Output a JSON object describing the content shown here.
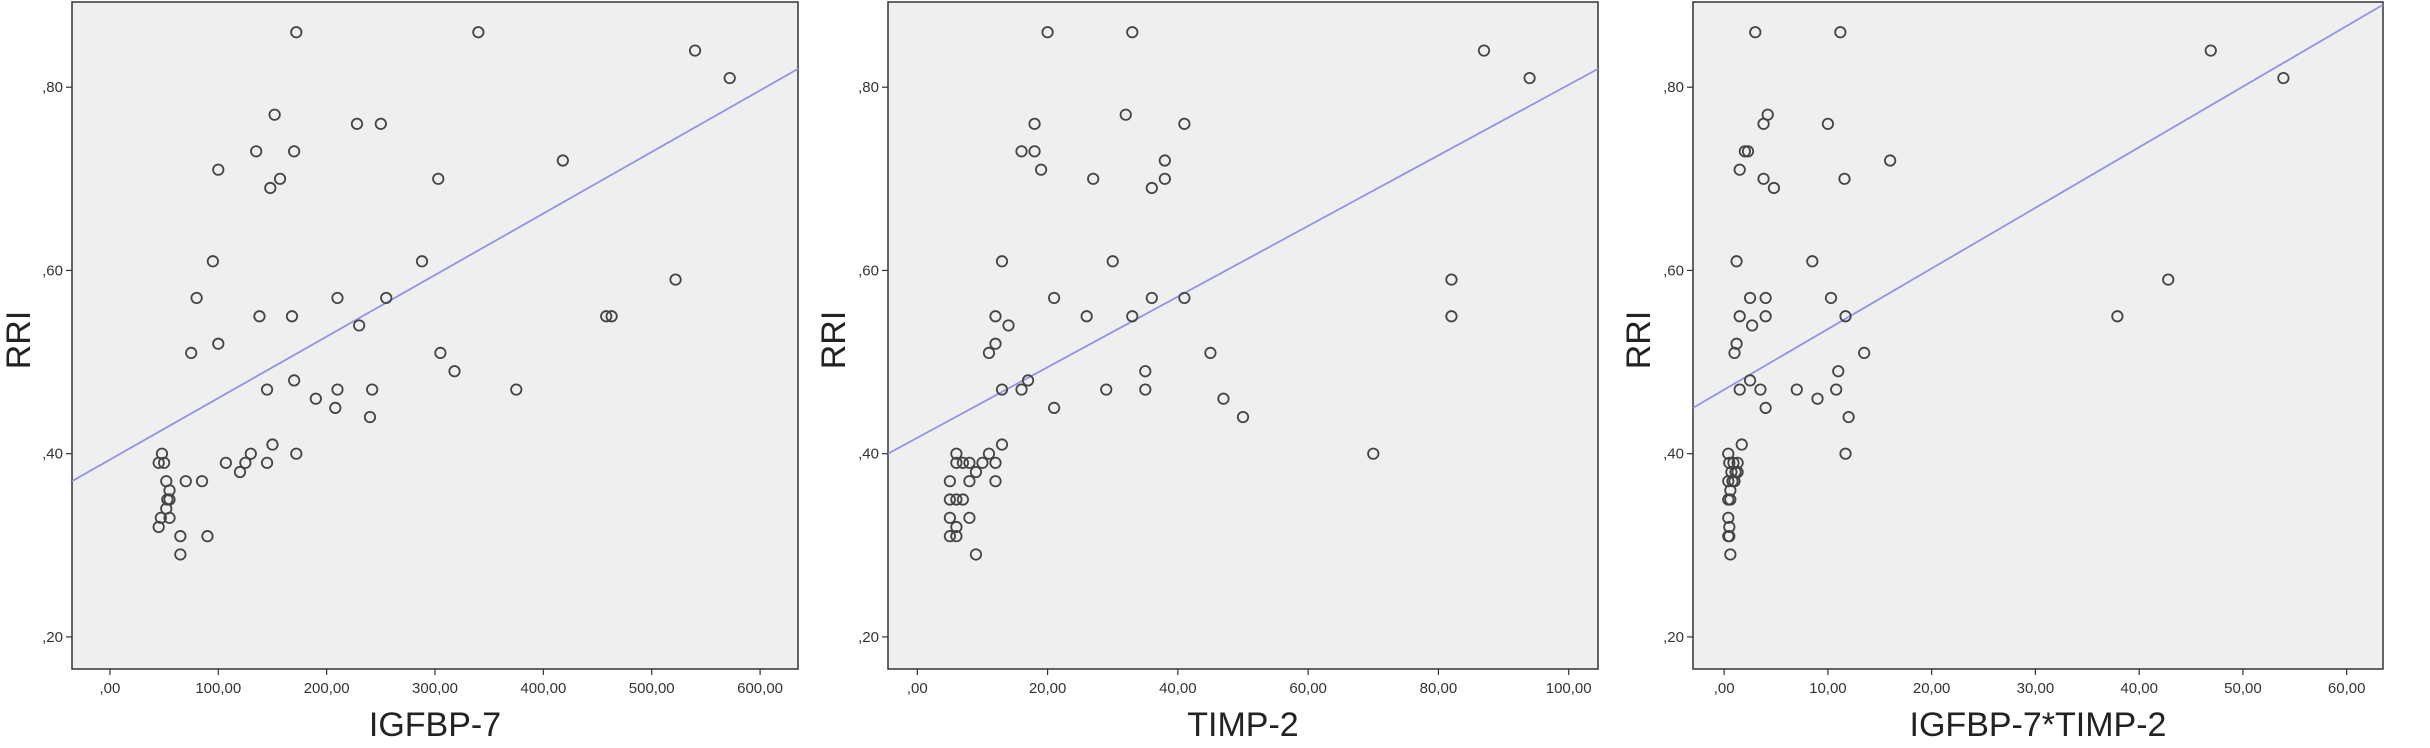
{
  "chart_data": [
    {
      "type": "scatter",
      "xlabel": "IGFBP-7",
      "ylabel": "RRI",
      "xlim": [
        -35,
        635
      ],
      "ylim": [
        0.165,
        0.893
      ],
      "x_ticks": [
        0,
        100,
        200,
        300,
        400,
        500,
        600
      ],
      "x_tick_labels": [
        ",00",
        "100,00",
        "200,00",
        "300,00",
        "400,00",
        "500,00",
        "600,00"
      ],
      "y_ticks": [
        0.2,
        0.4,
        0.6,
        0.8
      ],
      "y_tick_labels": [
        ",20",
        ",40",
        ",60",
        ",80"
      ],
      "grid": false,
      "fit_line": {
        "x": [
          -35,
          635
        ],
        "y": [
          0.37,
          0.82
        ]
      },
      "points": [
        [
          45,
          0.39
        ],
        [
          48,
          0.4
        ],
        [
          50,
          0.39
        ],
        [
          52,
          0.37
        ],
        [
          53,
          0.35
        ],
        [
          55,
          0.36
        ],
        [
          55,
          0.35
        ],
        [
          52,
          0.34
        ],
        [
          55,
          0.33
        ],
        [
          45,
          0.32
        ],
        [
          47,
          0.33
        ],
        [
          65,
          0.31
        ],
        [
          65,
          0.29
        ],
        [
          70,
          0.37
        ],
        [
          75,
          0.51
        ],
        [
          80,
          0.57
        ],
        [
          85,
          0.37
        ],
        [
          90,
          0.31
        ],
        [
          95,
          0.61
        ],
        [
          100,
          0.52
        ],
        [
          100,
          0.71
        ],
        [
          107,
          0.39
        ],
        [
          120,
          0.38
        ],
        [
          125,
          0.39
        ],
        [
          130,
          0.4
        ],
        [
          135,
          0.73
        ],
        [
          138,
          0.55
        ],
        [
          145,
          0.47
        ],
        [
          145,
          0.39
        ],
        [
          148,
          0.69
        ],
        [
          150,
          0.41
        ],
        [
          152,
          0.77
        ],
        [
          157,
          0.7
        ],
        [
          168,
          0.55
        ],
        [
          170,
          0.48
        ],
        [
          170,
          0.73
        ],
        [
          172,
          0.86
        ],
        [
          172,
          0.4
        ],
        [
          190,
          0.46
        ],
        [
          208,
          0.45
        ],
        [
          210,
          0.57
        ],
        [
          210,
          0.47
        ],
        [
          228,
          0.76
        ],
        [
          230,
          0.54
        ],
        [
          240,
          0.44
        ],
        [
          242,
          0.47
        ],
        [
          250,
          0.76
        ],
        [
          255,
          0.57
        ],
        [
          288,
          0.61
        ],
        [
          303,
          0.7
        ],
        [
          305,
          0.51
        ],
        [
          318,
          0.49
        ],
        [
          340,
          0.86
        ],
        [
          375,
          0.47
        ],
        [
          418,
          0.72
        ],
        [
          458,
          0.55
        ],
        [
          463,
          0.55
        ],
        [
          522,
          0.59
        ],
        [
          540,
          0.84
        ],
        [
          572,
          0.81
        ]
      ]
    },
    {
      "type": "scatter",
      "xlabel": "TIMP-2",
      "ylabel": "RRI",
      "xlim": [
        -4.5,
        104.5
      ],
      "ylim": [
        0.165,
        0.893
      ],
      "x_ticks": [
        0,
        20,
        40,
        60,
        80,
        100
      ],
      "x_tick_labels": [
        ",00",
        "20,00",
        "40,00",
        "60,00",
        "80,00",
        "100,00"
      ],
      "y_ticks": [
        0.2,
        0.4,
        0.6,
        0.8
      ],
      "y_tick_labels": [
        ",20",
        ",40",
        ",60",
        ",80"
      ],
      "grid": false,
      "fit_line": {
        "x": [
          -4.5,
          104.5
        ],
        "y": [
          0.4,
          0.82
        ]
      },
      "points": [
        [
          5,
          0.31
        ],
        [
          5,
          0.33
        ],
        [
          5,
          0.35
        ],
        [
          5,
          0.37
        ],
        [
          6,
          0.31
        ],
        [
          6,
          0.32
        ],
        [
          6,
          0.39
        ],
        [
          6,
          0.4
        ],
        [
          6,
          0.35
        ],
        [
          7,
          0.35
        ],
        [
          7,
          0.39
        ],
        [
          8,
          0.37
        ],
        [
          8,
          0.33
        ],
        [
          8,
          0.39
        ],
        [
          9,
          0.38
        ],
        [
          9,
          0.29
        ],
        [
          10,
          0.39
        ],
        [
          11,
          0.4
        ],
        [
          11,
          0.51
        ],
        [
          12,
          0.55
        ],
        [
          12,
          0.37
        ],
        [
          12,
          0.39
        ],
        [
          12,
          0.52
        ],
        [
          13,
          0.61
        ],
        [
          13,
          0.47
        ],
        [
          13,
          0.41
        ],
        [
          14,
          0.54
        ],
        [
          16,
          0.73
        ],
        [
          16,
          0.47
        ],
        [
          17,
          0.48
        ],
        [
          18,
          0.73
        ],
        [
          18,
          0.76
        ],
        [
          19,
          0.71
        ],
        [
          20,
          0.86
        ],
        [
          21,
          0.45
        ],
        [
          21,
          0.57
        ],
        [
          26,
          0.55
        ],
        [
          27,
          0.7
        ],
        [
          29,
          0.47
        ],
        [
          30,
          0.61
        ],
        [
          32,
          0.77
        ],
        [
          33,
          0.86
        ],
        [
          33,
          0.55
        ],
        [
          35,
          0.47
        ],
        [
          35,
          0.49
        ],
        [
          36,
          0.57
        ],
        [
          36,
          0.69
        ],
        [
          38,
          0.72
        ],
        [
          38,
          0.7
        ],
        [
          41,
          0.76
        ],
        [
          41,
          0.57
        ],
        [
          45,
          0.51
        ],
        [
          47,
          0.46
        ],
        [
          50,
          0.44
        ],
        [
          70,
          0.4
        ],
        [
          82,
          0.59
        ],
        [
          82,
          0.55
        ],
        [
          87,
          0.84
        ],
        [
          94,
          0.81
        ]
      ]
    },
    {
      "type": "scatter",
      "xlabel": "IGFBP-7*TIMP-2",
      "ylabel": "RRI",
      "xlim": [
        -3,
        63.5
      ],
      "ylim": [
        0.165,
        0.893
      ],
      "x_ticks": [
        0,
        10,
        20,
        30,
        40,
        50,
        60
      ],
      "x_tick_labels": [
        ",00",
        "10,00",
        "20,00",
        "30,00",
        "40,00",
        "50,00",
        "60,00"
      ],
      "y_ticks": [
        0.2,
        0.4,
        0.6,
        0.8
      ],
      "y_tick_labels": [
        ",20",
        ",40",
        ",60",
        ",80"
      ],
      "grid": false,
      "fit_line": {
        "x": [
          -3,
          63.5
        ],
        "y": [
          0.45,
          0.89
        ]
      },
      "points": [
        [
          0.4,
          0.31
        ],
        [
          0.4,
          0.33
        ],
        [
          0.4,
          0.35
        ],
        [
          0.4,
          0.37
        ],
        [
          0.4,
          0.4
        ],
        [
          0.5,
          0.39
        ],
        [
          0.5,
          0.31
        ],
        [
          0.5,
          0.32
        ],
        [
          0.6,
          0.35
        ],
        [
          0.6,
          0.36
        ],
        [
          0.6,
          0.29
        ],
        [
          0.7,
          0.38
        ],
        [
          0.8,
          0.37
        ],
        [
          0.9,
          0.39
        ],
        [
          1.0,
          0.51
        ],
        [
          1.0,
          0.37
        ],
        [
          1.1,
          0.38
        ],
        [
          1.2,
          0.61
        ],
        [
          1.2,
          0.52
        ],
        [
          1.3,
          0.39
        ],
        [
          1.3,
          0.38
        ],
        [
          1.5,
          0.55
        ],
        [
          1.5,
          0.71
        ],
        [
          1.5,
          0.47
        ],
        [
          1.7,
          0.41
        ],
        [
          2.0,
          0.73
        ],
        [
          2.3,
          0.73
        ],
        [
          2.5,
          0.48
        ],
        [
          2.5,
          0.57
        ],
        [
          2.7,
          0.54
        ],
        [
          3.0,
          0.86
        ],
        [
          3.5,
          0.47
        ],
        [
          3.8,
          0.76
        ],
        [
          3.8,
          0.7
        ],
        [
          4.0,
          0.57
        ],
        [
          4.0,
          0.55
        ],
        [
          4.0,
          0.45
        ],
        [
          4.2,
          0.77
        ],
        [
          4.8,
          0.69
        ],
        [
          7.0,
          0.47
        ],
        [
          8.5,
          0.61
        ],
        [
          9.0,
          0.46
        ],
        [
          10.0,
          0.76
        ],
        [
          10.3,
          0.57
        ],
        [
          10.8,
          0.47
        ],
        [
          11.0,
          0.49
        ],
        [
          11.2,
          0.86
        ],
        [
          11.6,
          0.7
        ],
        [
          11.7,
          0.55
        ],
        [
          11.7,
          0.4
        ],
        [
          12.0,
          0.44
        ],
        [
          13.5,
          0.51
        ],
        [
          16.0,
          0.72
        ],
        [
          37.9,
          0.55
        ],
        [
          42.8,
          0.59
        ],
        [
          46.9,
          0.84
        ],
        [
          53.9,
          0.81
        ]
      ]
    }
  ],
  "colors": {
    "plot_background": "#efefef",
    "frame": "#333333",
    "marker": "#444444",
    "fit_line": "#8f94e6"
  }
}
